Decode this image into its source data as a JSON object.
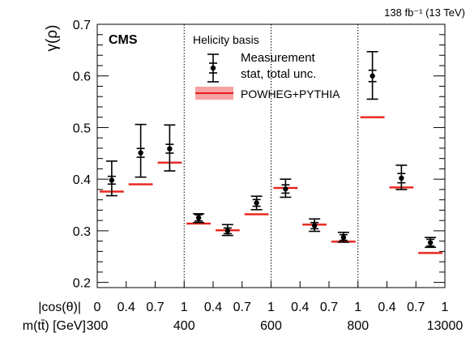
{
  "header": {
    "lumi": "138 fb⁻¹ (13 TeV)",
    "experiment": "CMS",
    "ylabel": "γ(ρ)"
  },
  "legend": {
    "title": "Helicity basis",
    "measurement": "Measurement",
    "unc": "stat, total unc.",
    "prediction": "POWHEG+PYTHIA"
  },
  "xaxis": {
    "row1_label": "|cos(θ)|",
    "row2_label": "m(tt̄) [GeV]",
    "cos_ticks": [
      "0",
      "0.4",
      "0.7",
      "1",
      "0.4",
      "0.7",
      "1",
      "0.4",
      "0.7",
      "1",
      "0.4",
      "0.7",
      "1"
    ],
    "mass_ticks": [
      "300",
      "400",
      "600",
      "800",
      "13000"
    ]
  },
  "colors": {
    "prediction": "#e8201a",
    "prediction_band": "#f5a3a3",
    "measurement": "#000000"
  },
  "chart_data": {
    "type": "scatter",
    "ylabel": "γ(ρ)",
    "ylim": [
      0.19,
      0.7
    ],
    "yticks": [
      "0.2",
      "0.3",
      "0.4",
      "0.5",
      "0.6",
      "0.7"
    ],
    "x": [
      1,
      2,
      3,
      4,
      5,
      6,
      7,
      8,
      9,
      10,
      11,
      12
    ],
    "series": [
      {
        "name": "Measurement",
        "values": [
          0.398,
          0.451,
          0.459,
          0.325,
          0.3,
          0.354,
          0.381,
          0.31,
          0.287,
          0.6,
          0.402,
          0.277
        ],
        "stat_unc": [
          0.0075,
          0.0085,
          0.0085,
          0.006,
          0.0055,
          0.0065,
          0.008,
          0.006,
          0.0055,
          0.011,
          0.009,
          0.0065
        ],
        "total_up": [
          0.435,
          0.506,
          0.505,
          0.333,
          0.312,
          0.367,
          0.4,
          0.323,
          0.297,
          0.647,
          0.427,
          0.287
        ],
        "total_down": [
          0.368,
          0.404,
          0.416,
          0.316,
          0.291,
          0.341,
          0.365,
          0.299,
          0.278,
          0.555,
          0.38,
          0.268
        ]
      },
      {
        "name": "POWHEG+PYTHIA",
        "values": [
          0.376,
          0.39,
          0.432,
          0.314,
          0.301,
          0.332,
          0.383,
          0.312,
          0.279,
          0.52,
          0.384,
          0.257
        ]
      }
    ]
  }
}
